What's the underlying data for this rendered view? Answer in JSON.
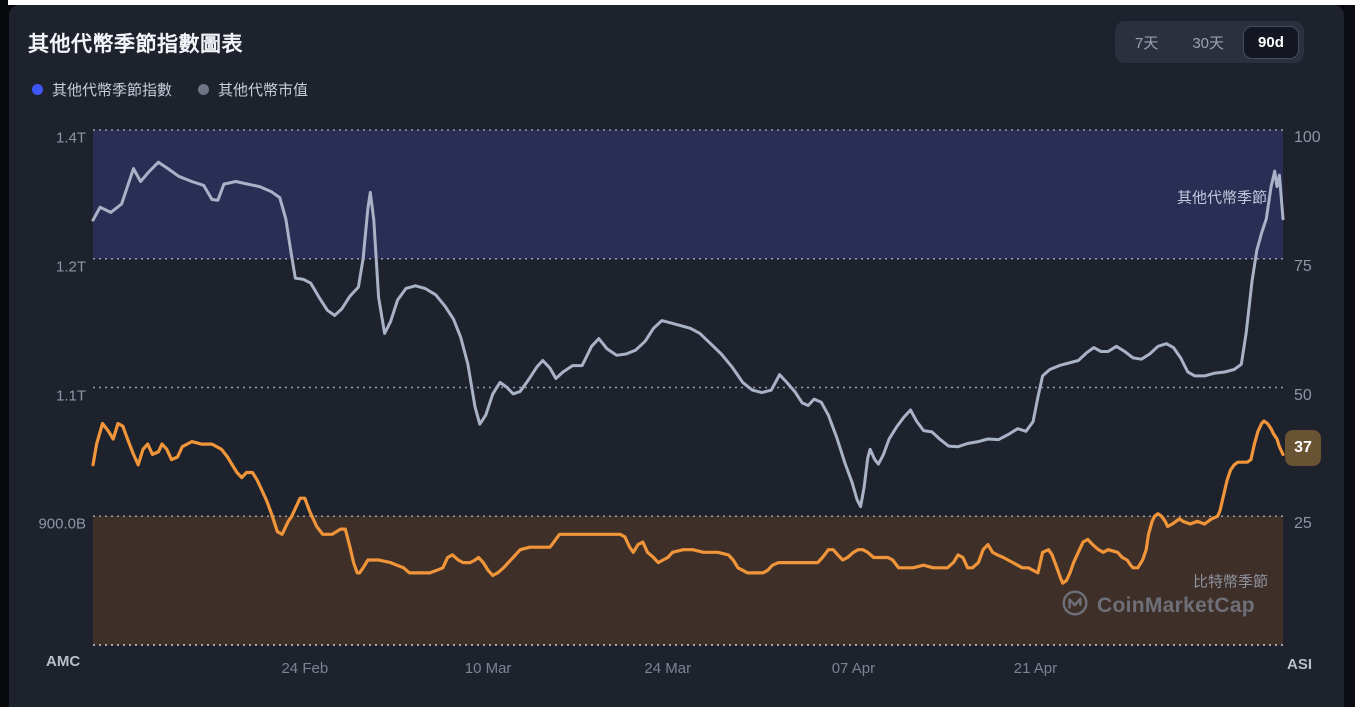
{
  "window": {
    "top_strip_color": "#ffffff",
    "frame_color": "#07090d",
    "card_color": "#1e222d"
  },
  "header": {
    "title": "其他代幣季節指數圖表"
  },
  "legend": {
    "items": [
      {
        "label": "其他代幣季節指數",
        "color": "#3d56f5"
      },
      {
        "label": "其他代幣市值",
        "color": "#6e7585"
      }
    ]
  },
  "range_selector": {
    "buttons": [
      {
        "label": "7天",
        "active": false
      },
      {
        "label": "30天",
        "active": false
      },
      {
        "label": "90d",
        "active": true
      }
    ]
  },
  "watermark": {
    "brand": "CoinMarketCap"
  },
  "chart_data": {
    "type": "line",
    "title": "其他代幣季節指數圖表",
    "x_axis": {
      "note": "t = fraction across the visible 90-day window",
      "ticks": [
        {
          "label": "24 Feb",
          "t": 0.178
        },
        {
          "label": "10 Mar",
          "t": 0.332
        },
        {
          "label": "24 Mar",
          "t": 0.483
        },
        {
          "label": "07 Apr",
          "t": 0.639
        },
        {
          "label": "21 Apr",
          "t": 0.792
        }
      ]
    },
    "left_axis": {
      "unit": "USD market cap",
      "ticks": [
        {
          "label": "1.4T",
          "value": 1.4
        },
        {
          "label": "1.2T",
          "value": 1.2
        },
        {
          "label": "1.1T",
          "value": 1.1
        },
        {
          "label": "900.0B",
          "value": 0.9
        }
      ],
      "bottom_anchor_value": 0.7
    },
    "right_axis": {
      "min": 0,
      "max": 100,
      "ticks": [
        100,
        75,
        50,
        25
      ]
    },
    "grid": {
      "style": "dotted-horizontal",
      "color": "#e8eaf2"
    },
    "bands": [
      {
        "label": "其他代幣季節",
        "axis": "right",
        "from": 75,
        "to": 100,
        "color": "#2a2e55",
        "label_color": "#c3c9dd"
      },
      {
        "label": "比特幣季節",
        "axis": "right",
        "from": 0,
        "to": 25,
        "color": "#3e2f28",
        "label_color": "#8e929f"
      }
    ],
    "corner_labels": {
      "bottom_left": "AMC",
      "bottom_right": "ASI"
    },
    "current_value": {
      "series": "其他代幣季節指數",
      "value": 37,
      "badge_bg": "#6a5332",
      "badge_text_color": "#ffffff"
    },
    "series": [
      {
        "name": "其他代幣市值",
        "axis": "left",
        "unit": "USD trillions",
        "color": "#a9b2c6",
        "width": 3,
        "points": [
          0,
          1.26,
          0.006,
          1.28,
          0.015,
          1.272,
          0.024,
          1.285,
          0.03,
          1.318,
          0.034,
          1.34,
          0.04,
          1.32,
          0.047,
          1.335,
          0.055,
          1.35,
          0.063,
          1.34,
          0.072,
          1.328,
          0.083,
          1.32,
          0.093,
          1.314,
          0.1,
          1.292,
          0.105,
          1.291,
          0.11,
          1.316,
          0.12,
          1.32,
          0.13,
          1.316,
          0.14,
          1.312,
          0.15,
          1.304,
          0.157,
          1.295,
          0.162,
          1.262,
          0.166,
          1.215,
          0.17,
          1.185,
          0.177,
          1.184,
          0.183,
          1.181,
          0.19,
          1.17,
          0.197,
          1.16,
          0.203,
          1.156,
          0.209,
          1.161,
          0.216,
          1.171,
          0.223,
          1.178,
          0.227,
          1.2,
          0.231,
          1.278,
          0.233,
          1.303,
          0.236,
          1.26,
          0.24,
          1.17,
          0.245,
          1.142,
          0.25,
          1.151,
          0.256,
          1.168,
          0.263,
          1.177,
          0.271,
          1.179,
          0.279,
          1.177,
          0.288,
          1.172,
          0.296,
          1.163,
          0.303,
          1.153,
          0.309,
          1.139,
          0.315,
          1.118,
          0.321,
          1.07,
          0.325,
          1.043,
          0.33,
          1.057,
          0.336,
          1.09,
          0.342,
          1.104,
          0.348,
          1.1,
          0.353,
          1.09,
          0.359,
          1.094,
          0.366,
          1.106,
          0.373,
          1.116,
          0.378,
          1.121,
          0.384,
          1.115,
          0.389,
          1.107,
          0.395,
          1.112,
          0.403,
          1.117,
          0.411,
          1.117,
          0.419,
          1.132,
          0.425,
          1.138,
          0.432,
          1.13,
          0.44,
          1.125,
          0.448,
          1.126,
          0.456,
          1.129,
          0.464,
          1.136,
          0.471,
          1.146,
          0.478,
          1.152,
          0.486,
          1.15,
          0.494,
          1.148,
          0.502,
          1.146,
          0.51,
          1.142,
          0.519,
          1.134,
          0.528,
          1.126,
          0.537,
          1.116,
          0.546,
          1.104,
          0.554,
          1.096,
          0.562,
          1.092,
          0.57,
          1.096,
          0.577,
          1.11,
          0.583,
          1.104,
          0.59,
          1.093,
          0.596,
          1.076,
          0.601,
          1.072,
          0.606,
          1.082,
          0.612,
          1.077,
          0.618,
          1.057,
          0.625,
          1.022,
          0.632,
          0.982,
          0.638,
          0.952,
          0.642,
          0.926,
          0.645,
          0.915,
          0.648,
          0.945,
          0.651,
          0.99,
          0.653,
          1.004,
          0.657,
          0.988,
          0.66,
          0.981,
          0.664,
          0.995,
          0.669,
          1.02,
          0.675,
          1.038,
          0.681,
          1.053,
          0.687,
          1.065,
          0.692,
          1.048,
          0.698,
          1.033,
          0.705,
          1.031,
          0.712,
          1.019,
          0.719,
          1.009,
          0.727,
          1.008,
          0.735,
          1.013,
          0.744,
          1.016,
          0.752,
          1.02,
          0.761,
          1.019,
          0.77,
          1.028,
          0.777,
          1.036,
          0.784,
          1.032,
          0.79,
          1.047,
          0.794,
          1.085,
          0.798,
          1.109,
          0.804,
          1.114,
          0.812,
          1.117,
          0.82,
          1.119,
          0.828,
          1.121,
          0.835,
          1.127,
          0.841,
          1.131,
          0.847,
          1.128,
          0.853,
          1.128,
          0.86,
          1.132,
          0.867,
          1.128,
          0.874,
          1.123,
          0.881,
          1.122,
          0.888,
          1.126,
          0.895,
          1.132,
          0.902,
          1.134,
          0.908,
          1.131,
          0.914,
          1.123,
          0.92,
          1.112,
          0.926,
          1.109,
          0.934,
          1.109,
          0.942,
          1.111,
          0.951,
          1.112,
          0.959,
          1.114,
          0.965,
          1.118,
          0.969,
          1.142,
          0.974,
          1.183,
          0.978,
          1.213,
          0.982,
          1.24,
          0.986,
          1.262,
          0.99,
          1.312,
          0.993,
          1.336,
          0.995,
          1.312,
          0.997,
          1.33,
          1,
          1.262
        ]
      },
      {
        "name": "其他代幣季節指數",
        "axis": "right",
        "unit": "index 0-100",
        "color": "#f0953a",
        "width": 3.2,
        "points": [
          0,
          35,
          0.003,
          39,
          0.008,
          43,
          0.013,
          41.5,
          0.017,
          40,
          0.021,
          43,
          0.025,
          42.5,
          0.029,
          40,
          0.034,
          37,
          0.038,
          35,
          0.042,
          38,
          0.046,
          39,
          0.05,
          37,
          0.055,
          37.5,
          0.058,
          39,
          0.062,
          38,
          0.066,
          36,
          0.071,
          36.5,
          0.075,
          38.5,
          0.083,
          39.5,
          0.091,
          39,
          0.1,
          39,
          0.108,
          38,
          0.113,
          36.5,
          0.117,
          35,
          0.121,
          33.5,
          0.125,
          32.5,
          0.129,
          33.5,
          0.134,
          33.5,
          0.138,
          32,
          0.142,
          30,
          0.146,
          28,
          0.15,
          25.5,
          0.155,
          22,
          0.159,
          21.5,
          0.161,
          22.5,
          0.164,
          24,
          0.167,
          25,
          0.171,
          27,
          0.174,
          28.5,
          0.178,
          28.5,
          0.182,
          26,
          0.188,
          23,
          0.193,
          21.5,
          0.201,
          21.5,
          0.208,
          22.5,
          0.212,
          22.5,
          0.216,
          19,
          0.219,
          16,
          0.222,
          14,
          0.224,
          14,
          0.227,
          15,
          0.231,
          16.5,
          0.24,
          16.5,
          0.25,
          16,
          0.261,
          15,
          0.266,
          14,
          0.277,
          14,
          0.283,
          14,
          0.289,
          14.5,
          0.294,
          15,
          0.298,
          17,
          0.302,
          17.5,
          0.307,
          16.5,
          0.311,
          16,
          0.317,
          16,
          0.321,
          16.5,
          0.324,
          17,
          0.328,
          16,
          0.332,
          14.5,
          0.336,
          13.5,
          0.34,
          14,
          0.345,
          15,
          0.349,
          16,
          0.353,
          17,
          0.359,
          18.5,
          0.367,
          19,
          0.376,
          19,
          0.384,
          19,
          0.392,
          21.5,
          0.401,
          21.5,
          0.418,
          21.5,
          0.435,
          21.5,
          0.443,
          21.5,
          0.447,
          21,
          0.451,
          19,
          0.454,
          18,
          0.458,
          19.5,
          0.462,
          20,
          0.466,
          18,
          0.471,
          17,
          0.475,
          16,
          0.479,
          16.5,
          0.483,
          17,
          0.487,
          18,
          0.496,
          18.5,
          0.504,
          18.5,
          0.513,
          18,
          0.525,
          18,
          0.534,
          17.5,
          0.538,
          16.5,
          0.542,
          15,
          0.546,
          14.5,
          0.55,
          14,
          0.563,
          14,
          0.567,
          14.5,
          0.571,
          15.5,
          0.576,
          16,
          0.592,
          16,
          0.609,
          16,
          0.613,
          17,
          0.618,
          18.5,
          0.622,
          18.5,
          0.626,
          17.5,
          0.63,
          16.5,
          0.634,
          17,
          0.639,
          18,
          0.643,
          18.5,
          0.647,
          18.5,
          0.651,
          18,
          0.656,
          17,
          0.668,
          17,
          0.672,
          16.5,
          0.677,
          15,
          0.689,
          15,
          0.698,
          15.5,
          0.706,
          15,
          0.718,
          15,
          0.723,
          16,
          0.727,
          17.5,
          0.731,
          17,
          0.735,
          15,
          0.739,
          15,
          0.744,
          16,
          0.748,
          18.5,
          0.752,
          19.5,
          0.756,
          18,
          0.76,
          17.5,
          0.765,
          17,
          0.773,
          16,
          0.777,
          15.5,
          0.781,
          15,
          0.786,
          15,
          0.79,
          14.5,
          0.794,
          14,
          0.798,
          18,
          0.803,
          18.5,
          0.806,
          17.5,
          0.81,
          15,
          0.813,
          13,
          0.815,
          12,
          0.818,
          12.5,
          0.821,
          14,
          0.824,
          16,
          0.828,
          18,
          0.832,
          20,
          0.836,
          20.5,
          0.84,
          19.5,
          0.845,
          18.5,
          0.849,
          18,
          0.853,
          18.5,
          0.861,
          18,
          0.865,
          17,
          0.869,
          16.5,
          0.872,
          15.5,
          0.874,
          15,
          0.878,
          15,
          0.882,
          16.5,
          0.885,
          18.5,
          0.887,
          21.5,
          0.89,
          24,
          0.892,
          25,
          0.895,
          25.5,
          0.898,
          25,
          0.901,
          24,
          0.903,
          23,
          0.907,
          23.5,
          0.91,
          24,
          0.913,
          24.5,
          0.916,
          24,
          0.922,
          23.5,
          0.928,
          24,
          0.934,
          23.5,
          0.94,
          24.5,
          0.945,
          25,
          0.947,
          26,
          0.95,
          29,
          0.953,
          32,
          0.956,
          34,
          0.959,
          35,
          0.962,
          35.5,
          0.97,
          35.5,
          0.973,
          36,
          0.976,
          39,
          0.979,
          41.5,
          0.982,
          43,
          0.984,
          43.5,
          0.987,
          43,
          0.99,
          42,
          0.992,
          41,
          0.995,
          40,
          0.997,
          38.5,
          1,
          37
        ]
      }
    ]
  }
}
